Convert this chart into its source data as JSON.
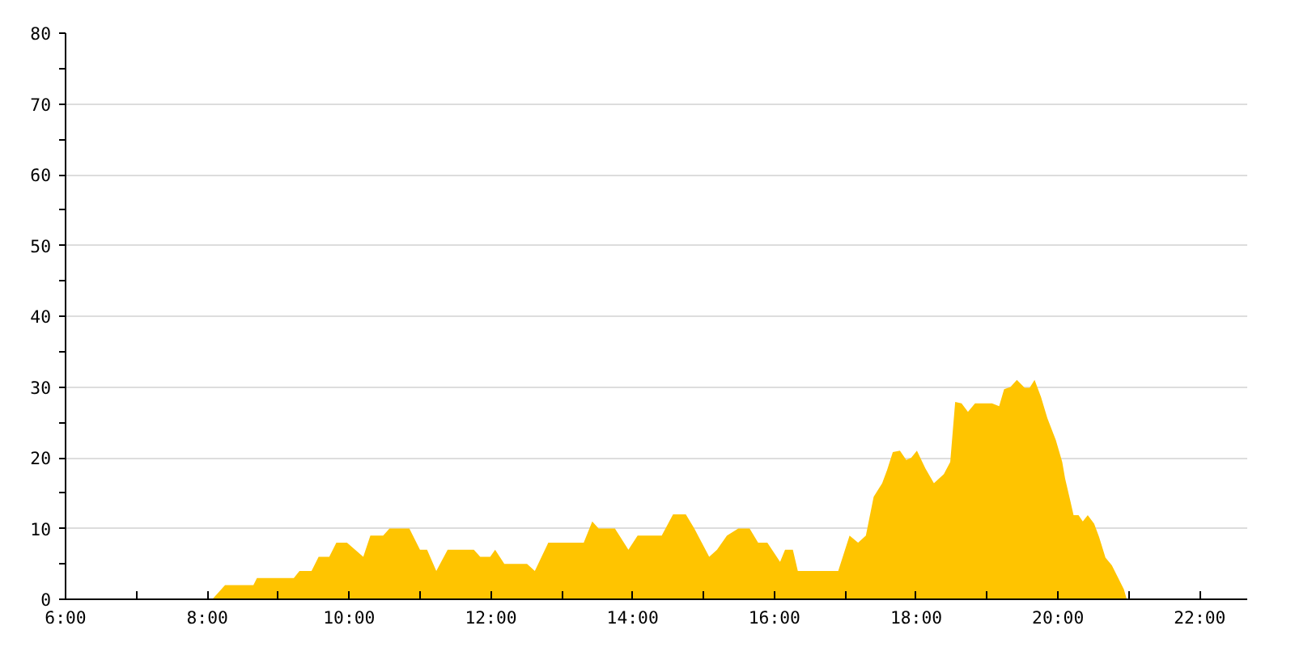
{
  "chart_data": {
    "type": "area",
    "color": "#ffc400",
    "x": [
      8.07,
      8.25,
      8.65,
      8.7,
      9.22,
      9.3,
      9.47,
      9.57,
      9.72,
      9.82,
      9.97,
      10.2,
      10.3,
      10.48,
      10.57,
      10.85,
      11.0,
      11.1,
      11.23,
      11.39,
      11.76,
      11.85,
      11.99,
      12.06,
      12.19,
      12.51,
      12.62,
      12.81,
      13.31,
      13.43,
      13.52,
      13.75,
      13.94,
      14.07,
      14.41,
      14.57,
      14.75,
      14.87,
      15.08,
      15.19,
      15.33,
      15.49,
      15.65,
      15.77,
      15.9,
      16.08,
      16.15,
      16.26,
      16.33,
      16.9,
      17.06,
      17.18,
      17.29,
      17.4,
      17.52,
      17.59,
      17.67,
      17.77,
      17.86,
      17.93,
      18.01,
      18.13,
      18.25,
      18.39,
      18.48,
      18.55,
      18.64,
      18.73,
      18.83,
      19.07,
      19.17,
      19.24,
      19.33,
      19.42,
      19.53,
      19.6,
      19.67,
      19.76,
      19.85,
      19.97,
      20.06,
      20.1,
      20.17,
      20.22,
      20.29,
      20.35,
      20.42,
      20.51,
      20.58,
      20.67,
      20.76,
      20.83,
      20.93,
      20.97
    ],
    "values": [
      0,
      2,
      2,
      3,
      3,
      4,
      4,
      6,
      6,
      8,
      8,
      6,
      9,
      9,
      10,
      10,
      7,
      7,
      4,
      7,
      7,
      6,
      6,
      7,
      5,
      5,
      4,
      8,
      8,
      11,
      10,
      10,
      7,
      9,
      9,
      12,
      12,
      10,
      6,
      7,
      9,
      10,
      10,
      8,
      8,
      5.3,
      7,
      7,
      4,
      4,
      9,
      8,
      9,
      14.5,
      16.4,
      18.3,
      20.8,
      21,
      19.7,
      20,
      21,
      18.5,
      16.4,
      17.7,
      19.4,
      27.9,
      27.7,
      26.5,
      27.7,
      27.7,
      27.3,
      29.7,
      30,
      31,
      29.9,
      29.9,
      31,
      28.6,
      25.6,
      22.5,
      19.4,
      17.1,
      14.1,
      11.9,
      11.9,
      11,
      11.9,
      10.7,
      8.8,
      5.9,
      4.8,
      3.4,
      1.4,
      0
    ],
    "xlim": [
      6,
      22.67
    ],
    "xticks": [
      {
        "value": 6,
        "label": "6:00"
      },
      {
        "value": 7,
        "label": null
      },
      {
        "value": 8,
        "label": "8:00"
      },
      {
        "value": 9,
        "label": null
      },
      {
        "value": 10,
        "label": "10:00"
      },
      {
        "value": 11,
        "label": null
      },
      {
        "value": 12,
        "label": "12:00"
      },
      {
        "value": 13,
        "label": null
      },
      {
        "value": 14,
        "label": "14:00"
      },
      {
        "value": 15,
        "label": null
      },
      {
        "value": 16,
        "label": "16:00"
      },
      {
        "value": 17,
        "label": null
      },
      {
        "value": 18,
        "label": "18:00"
      },
      {
        "value": 19,
        "label": null
      },
      {
        "value": 20,
        "label": "20:00"
      },
      {
        "value": 21,
        "label": null
      },
      {
        "value": 22,
        "label": "22:00"
      }
    ],
    "ylim": [
      0,
      80
    ],
    "yticks": [
      0,
      {
        "value": 5,
        "label": null
      },
      10,
      {
        "value": 15,
        "label": null
      },
      20,
      {
        "value": 25,
        "label": null
      },
      30,
      {
        "value": 35,
        "label": null
      },
      40,
      {
        "value": 45,
        "label": null
      },
      50,
      {
        "value": 55,
        "label": null
      },
      60,
      {
        "value": 65,
        "label": null
      },
      70,
      {
        "value": 75,
        "label": null
      },
      80
    ],
    "grid": "y"
  }
}
